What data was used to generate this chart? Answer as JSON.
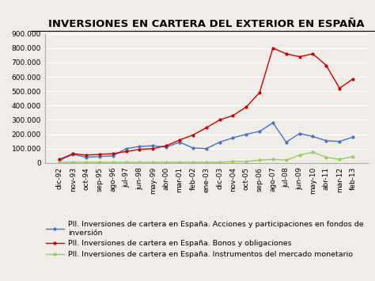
{
  "title": "INVERSIONES EN CARTERA DEL EXTERIOR EN ESPAÑA",
  "ylim": [
    0,
    900000
  ],
  "yticks": [
    0,
    100000,
    200000,
    300000,
    400000,
    500000,
    600000,
    700000,
    800000,
    900000
  ],
  "background_color": "#f0ede8",
  "x_labels": [
    "dic-92",
    "nov-93",
    "oct-94",
    "sep-95",
    "ago-96",
    "jul-97",
    "jun-98",
    "may-99",
    "abr-00",
    "mar-01",
    "feb-02",
    "ene-03",
    "dic-03",
    "nov-04",
    "oct-05",
    "sep-06",
    "ago-07",
    "jul-08",
    "jun-09",
    "may-10",
    "abr-11",
    "mar-12",
    "feb-13"
  ],
  "blue_line": [
    20000,
    60000,
    40000,
    45000,
    50000,
    100000,
    115000,
    120000,
    110000,
    145000,
    105000,
    100000,
    145000,
    175000,
    200000,
    220000,
    280000,
    145000,
    205000,
    185000,
    155000,
    150000,
    180000
  ],
  "red_line": [
    25000,
    65000,
    55000,
    60000,
    65000,
    80000,
    95000,
    100000,
    120000,
    160000,
    195000,
    245000,
    300000,
    330000,
    390000,
    490000,
    800000,
    760000,
    740000,
    760000,
    680000,
    520000,
    585000
  ],
  "green_line": [
    5000,
    5000,
    5000,
    5000,
    5000,
    5000,
    5000,
    5000,
    5000,
    5000,
    5000,
    5000,
    5000,
    10000,
    10000,
    20000,
    25000,
    20000,
    55000,
    75000,
    40000,
    25000,
    45000
  ],
  "line_colors": [
    "#4472C4",
    "#CC0000",
    "#92D050"
  ],
  "legend_labels": [
    "PII. Inversiones de cartera en España. Acciones y participaciones en fondos de\ninversión",
    "PII. Inversiones de cartera en España. Bonos y obligaciones",
    "PII. Inversiones de cartera en España. Instrumentos del mercado monetario"
  ],
  "title_fontsize": 9.5,
  "legend_fontsize": 6.8,
  "tick_fontsize": 6.5
}
